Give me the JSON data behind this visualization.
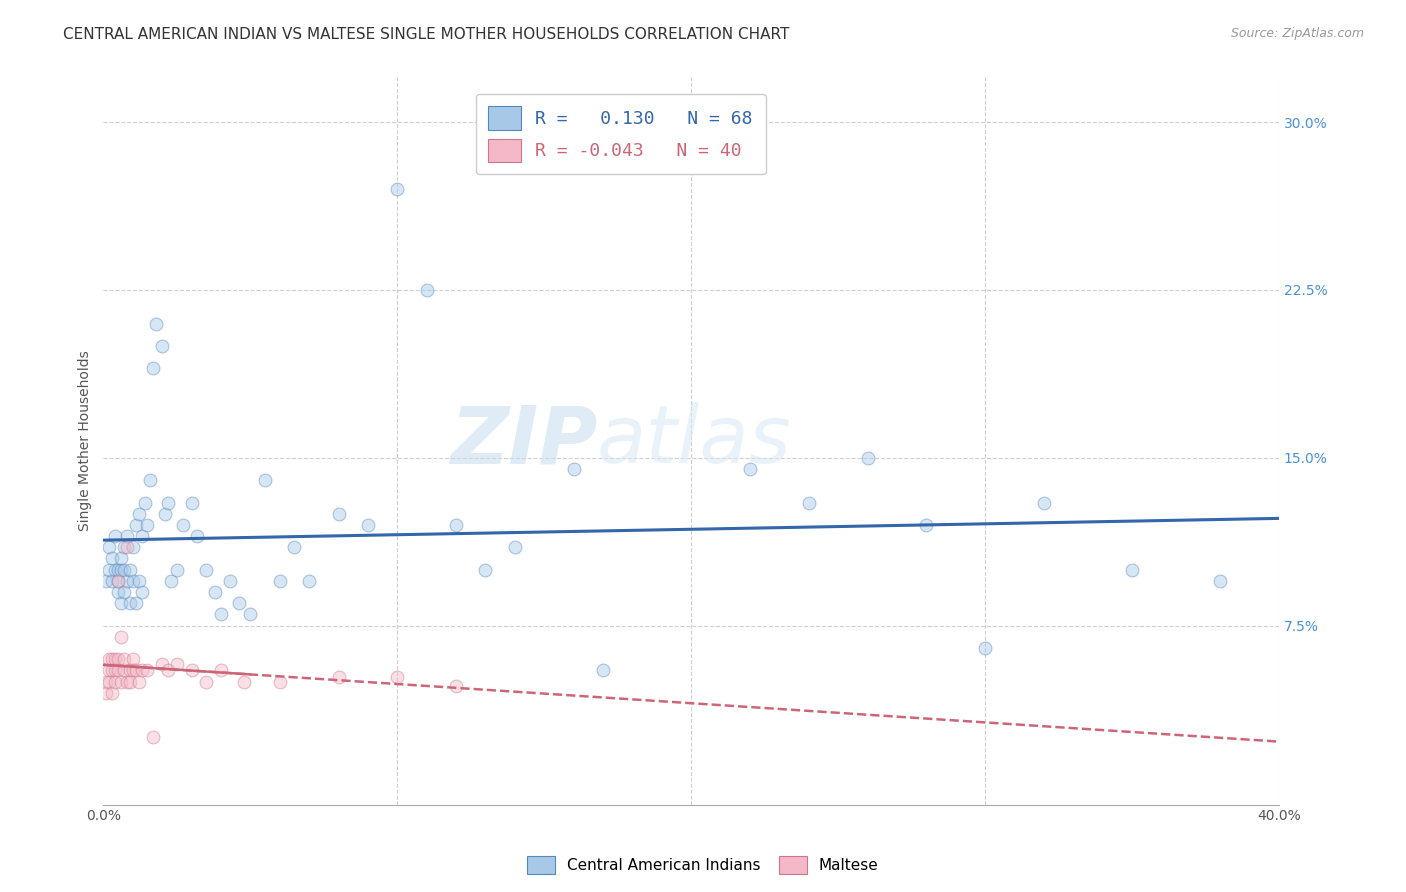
{
  "title": "CENTRAL AMERICAN INDIAN VS MALTESE SINGLE MOTHER HOUSEHOLDS CORRELATION CHART",
  "source": "Source: ZipAtlas.com",
  "ylabel": "Single Mother Households",
  "watermark": "ZIPatlas",
  "blue_R": 0.13,
  "blue_N": 68,
  "pink_R": -0.043,
  "pink_N": 40,
  "xlim": [
    0.0,
    0.4
  ],
  "ylim": [
    -0.005,
    0.32
  ],
  "x_ticks": [
    0.0,
    0.1,
    0.2,
    0.3,
    0.4
  ],
  "x_tick_labels": [
    "0.0%",
    "",
    "",
    "",
    "40.0%"
  ],
  "y_ticks_right": [
    0.0,
    0.075,
    0.15,
    0.225,
    0.3
  ],
  "y_tick_labels_right": [
    "",
    "7.5%",
    "15.0%",
    "22.5%",
    "30.0%"
  ],
  "blue_color": "#a8c8e8",
  "blue_edge_color": "#5588bb",
  "blue_line_color": "#3366aa",
  "pink_color": "#f4b8c8",
  "pink_edge_color": "#cc7788",
  "pink_line_color": "#cc6677",
  "legend_blue_label": "Central American Indians",
  "legend_pink_label": "Maltese",
  "blue_scatter_x": [
    0.001,
    0.002,
    0.002,
    0.003,
    0.003,
    0.004,
    0.004,
    0.005,
    0.005,
    0.005,
    0.006,
    0.006,
    0.006,
    0.007,
    0.007,
    0.007,
    0.008,
    0.008,
    0.009,
    0.009,
    0.01,
    0.01,
    0.011,
    0.011,
    0.012,
    0.012,
    0.013,
    0.013,
    0.014,
    0.015,
    0.016,
    0.017,
    0.018,
    0.02,
    0.021,
    0.022,
    0.023,
    0.025,
    0.027,
    0.03,
    0.032,
    0.035,
    0.038,
    0.04,
    0.043,
    0.046,
    0.05,
    0.055,
    0.06,
    0.065,
    0.07,
    0.08,
    0.09,
    0.1,
    0.11,
    0.12,
    0.13,
    0.14,
    0.16,
    0.17,
    0.22,
    0.24,
    0.26,
    0.28,
    0.3,
    0.32,
    0.35,
    0.38
  ],
  "blue_scatter_y": [
    0.095,
    0.1,
    0.11,
    0.095,
    0.105,
    0.1,
    0.115,
    0.09,
    0.1,
    0.095,
    0.1,
    0.085,
    0.105,
    0.11,
    0.09,
    0.1,
    0.095,
    0.115,
    0.1,
    0.085,
    0.11,
    0.095,
    0.12,
    0.085,
    0.125,
    0.095,
    0.115,
    0.09,
    0.13,
    0.12,
    0.14,
    0.19,
    0.21,
    0.2,
    0.125,
    0.13,
    0.095,
    0.1,
    0.12,
    0.13,
    0.115,
    0.1,
    0.09,
    0.08,
    0.095,
    0.085,
    0.08,
    0.14,
    0.095,
    0.11,
    0.095,
    0.125,
    0.12,
    0.27,
    0.225,
    0.12,
    0.1,
    0.11,
    0.145,
    0.055,
    0.145,
    0.13,
    0.15,
    0.12,
    0.065,
    0.13,
    0.1,
    0.095
  ],
  "pink_scatter_x": [
    0.001,
    0.001,
    0.002,
    0.002,
    0.002,
    0.003,
    0.003,
    0.003,
    0.004,
    0.004,
    0.004,
    0.005,
    0.005,
    0.005,
    0.006,
    0.006,
    0.007,
    0.007,
    0.008,
    0.008,
    0.009,
    0.009,
    0.01,
    0.01,
    0.011,
    0.012,
    0.013,
    0.015,
    0.017,
    0.02,
    0.022,
    0.025,
    0.03,
    0.035,
    0.04,
    0.048,
    0.06,
    0.08,
    0.1,
    0.12
  ],
  "pink_scatter_y": [
    0.05,
    0.045,
    0.06,
    0.055,
    0.05,
    0.055,
    0.06,
    0.045,
    0.06,
    0.055,
    0.05,
    0.095,
    0.055,
    0.06,
    0.07,
    0.05,
    0.055,
    0.06,
    0.05,
    0.11,
    0.055,
    0.05,
    0.06,
    0.055,
    0.055,
    0.05,
    0.055,
    0.055,
    0.025,
    0.058,
    0.055,
    0.058,
    0.055,
    0.05,
    0.055,
    0.05,
    0.05,
    0.052,
    0.052,
    0.048
  ],
  "title_fontsize": 11,
  "source_fontsize": 9,
  "axis_fontsize": 10,
  "tick_fontsize": 10,
  "marker_size": 85,
  "marker_alpha": 0.45,
  "background_color": "#ffffff",
  "grid_color": "#bbbbbb"
}
